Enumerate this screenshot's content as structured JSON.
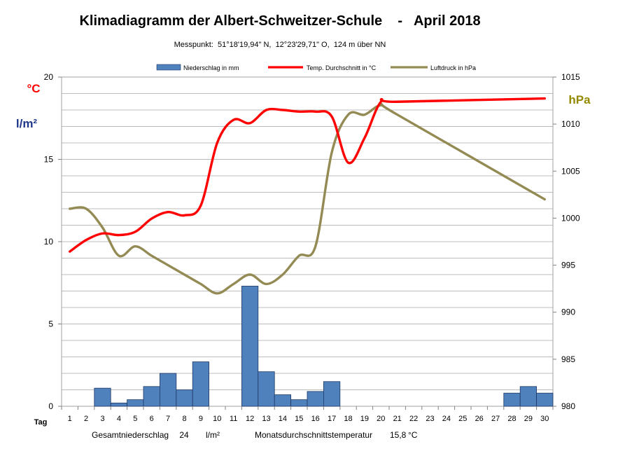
{
  "chart_data": {
    "type": "combo",
    "title": "Klimadiagramm der Albert-Schweitzer-Schule    -   April 2018",
    "subtitle": "Messpunkt:  51°18'19,94\" N,  12°23'29,71\" O,  124 m über NN",
    "left_axis_unit_1": "°C",
    "left_axis_unit_2": "l/m²",
    "right_axis_unit": "hPa",
    "x_axis_label": "Tag",
    "x_categories": [
      "1",
      "2",
      "3",
      "4",
      "5",
      "6",
      "7",
      "8",
      "9",
      "10",
      "11",
      "12",
      "13",
      "14",
      "15",
      "16",
      "17",
      "18",
      "19",
      "20",
      "21",
      "22",
      "23",
      "24",
      "25",
      "26",
      "27",
      "28",
      "29",
      "30"
    ],
    "left_ylim": [
      0,
      20
    ],
    "left_ticks": [
      "0",
      "5",
      "10",
      "15",
      "20"
    ],
    "right_ylim": [
      980,
      1015
    ],
    "right_ticks": [
      "980",
      "985",
      "990",
      "995",
      "1000",
      "1005",
      "1010",
      "1015"
    ],
    "legend": {
      "precip": "Niederschlag in mm",
      "temp": "Temp. Durchschnitt in °C",
      "pressure": "Luftdruck in hPa"
    },
    "precipitation": [
      0,
      0,
      1.1,
      0.2,
      0.4,
      1.2,
      2.0,
      1.0,
      2.7,
      0,
      0,
      7.3,
      2.1,
      0.7,
      0.4,
      0.9,
      1.5,
      0,
      0,
      0,
      0,
      0,
      0,
      0,
      0,
      0,
      0,
      0.8,
      1.2,
      0.8
    ],
    "temperature": [
      9.4,
      10.1,
      10.5,
      10.4,
      10.6,
      11.4,
      11.8,
      11.6,
      12.2,
      16.0,
      17.4,
      17.2,
      18.0,
      18.0,
      17.9,
      17.9,
      17.6,
      14.8,
      16.3,
      18.5,
      18.5,
      null,
      null,
      null,
      null,
      null,
      null,
      null,
      null,
      18.7
    ],
    "pressure": [
      1001.0,
      1001.0,
      999.0,
      996.0,
      997.0,
      996.0,
      995.0,
      994.0,
      993.0,
      992.0,
      993.0,
      994.0,
      993.0,
      994.0,
      996.0,
      997.0,
      1007.0,
      1011.0,
      1011.0,
      1012.0,
      1011.0,
      null,
      null,
      null,
      null,
      null,
      null,
      null,
      null,
      1002.0
    ],
    "colors": {
      "precip": "#4f81bd",
      "precip_stroke": "#1f3864",
      "temp": "#ff0000",
      "pressure": "#948a54",
      "unit_celsius": "#ff0000",
      "unit_lm2": "#1f3889",
      "unit_hpa": "#948a00"
    },
    "footer": {
      "total_label": "Gesamtniederschlag",
      "total_value": "24",
      "total_unit": "l/m²",
      "mean_label": "Monatsdurchschnittstemperatur",
      "mean_value": "15,8",
      "mean_unit": "°C"
    }
  }
}
